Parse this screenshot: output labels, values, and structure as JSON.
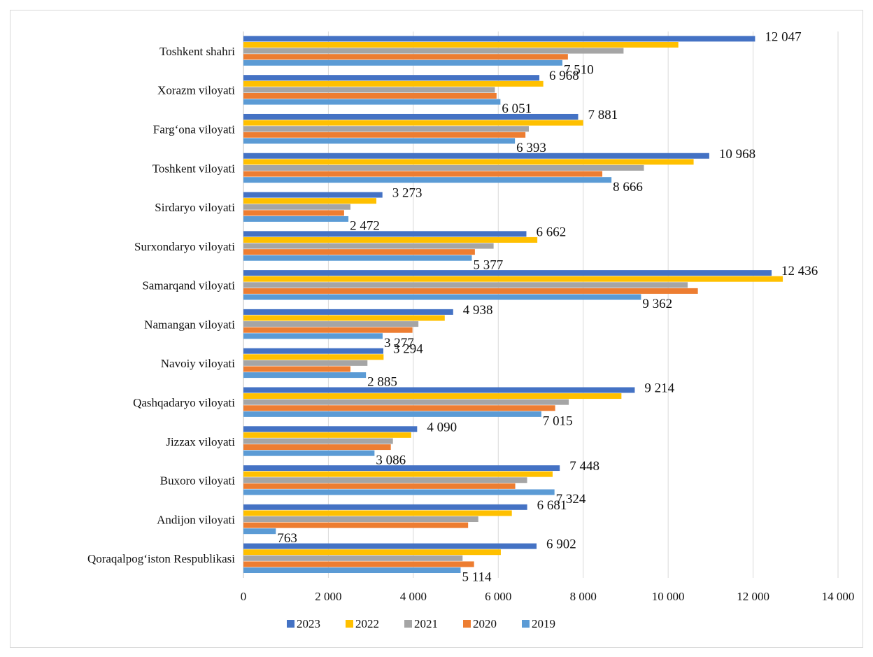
{
  "chart_data": {
    "type": "bar",
    "orientation": "horizontal",
    "title": "",
    "xlabel": "",
    "ylabel": "",
    "xlim": [
      0,
      14000
    ],
    "x_ticks": [
      {
        "value": 0,
        "label": "0"
      },
      {
        "value": 2000,
        "label": "2 000"
      },
      {
        "value": 4000,
        "label": "4 000"
      },
      {
        "value": 6000,
        "label": "6 000"
      },
      {
        "value": 8000,
        "label": "8 000"
      },
      {
        "value": 10000,
        "label": "10 000"
      },
      {
        "value": 12000,
        "label": "12 000"
      },
      {
        "value": 14000,
        "label": "14 000"
      }
    ],
    "grid": "vertical",
    "legend_position": "bottom",
    "categories": [
      "Toshkent shahri",
      "Xorazm viloyati",
      "Farg‘ona viloyati",
      "Toshkent viloyati",
      "Sirdaryo viloyati",
      "Surxondaryo viloyati",
      "Samarqand viloyati",
      "Namangan viloyati",
      "Navoiy viloyati",
      "Qashqadaryo viloyati",
      "Jizzax viloyati",
      "Buxoro viloyati",
      "Andijon viloyati",
      "Qoraqalpog‘iston Respublikasi"
    ],
    "series": [
      {
        "name": "2023",
        "color": "#4472C4",
        "values": [
          12047,
          6968,
          7881,
          10968,
          3273,
          6662,
          12436,
          4938,
          3294,
          9214,
          4090,
          7448,
          6681,
          6902
        ],
        "labels": [
          "12 047",
          "6 968",
          "7 881",
          "10 968",
          "3 273",
          "6 662",
          "12 436",
          "4 938",
          "3 294",
          "9 214",
          "4 090",
          "7 448",
          "6 681",
          "6 902"
        ]
      },
      {
        "name": "2022",
        "color": "#FFC000",
        "values": [
          10240,
          7060,
          8000,
          10600,
          3130,
          6920,
          12700,
          4740,
          3300,
          8900,
          3950,
          7280,
          6320,
          6060
        ]
      },
      {
        "name": "2021",
        "color": "#A5A5A5",
        "values": [
          8950,
          5920,
          6720,
          9430,
          2520,
          5890,
          10460,
          4120,
          2920,
          7660,
          3520,
          6680,
          5530,
          5160
        ]
      },
      {
        "name": "2020",
        "color": "#ED7D31",
        "values": [
          7640,
          5960,
          6640,
          8450,
          2370,
          5450,
          10700,
          3980,
          2520,
          7340,
          3470,
          6400,
          5290,
          5430
        ]
      },
      {
        "name": "2019",
        "color": "#5B9BD5",
        "values": [
          7510,
          6051,
          6393,
          8666,
          2472,
          5377,
          9362,
          3277,
          2885,
          7015,
          3086,
          7324,
          763,
          5114
        ],
        "labels": [
          "7 510",
          "6 051",
          "6 393",
          "8 666",
          "2 472",
          "5 377",
          "9 362",
          "3 277",
          "2 885",
          "7 015",
          "3 086",
          "7 324",
          "763",
          "5 114"
        ]
      }
    ],
    "legend_order": [
      "2023",
      "2022",
      "2021",
      "2020",
      "2019"
    ]
  }
}
